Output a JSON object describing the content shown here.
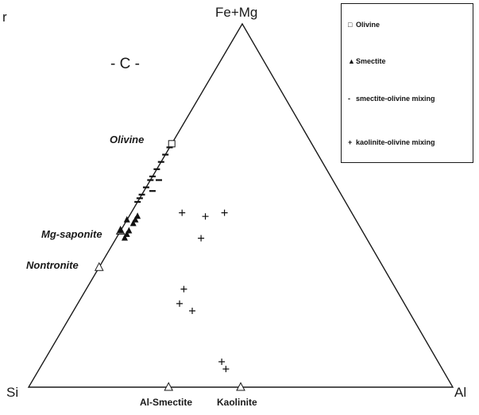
{
  "chart_data": {
    "type": "scatter",
    "plot_kind": "ternary",
    "panel_letter": "r",
    "panel_label": "- C -",
    "vertices": {
      "top": "Fe+Mg",
      "left": "Si",
      "right": "Al"
    },
    "annotations": {
      "olivine": "Olivine",
      "mg_saponite": "Mg-saponite",
      "nontronite": "Nontronite",
      "al_smectite": "Al-Smectite",
      "kaolinite": "Kaolinite"
    },
    "series": [
      {
        "name": "Olivine",
        "symbol": "□",
        "points": [
          {
            "si": 0.33,
            "al": 0.0,
            "femg": 0.67
          }
        ]
      },
      {
        "name": "Smectite",
        "symbol": "▲",
        "points": [
          {
            "si": 0.57,
            "al": 0.0,
            "femg": 0.43
          },
          {
            "si": 0.54,
            "al": 0.0,
            "femg": 0.46
          },
          {
            "si": 0.52,
            "al": 0.02,
            "femg": 0.46
          },
          {
            "si": 0.51,
            "al": 0.02,
            "femg": 0.47
          },
          {
            "si": 0.55,
            "al": 0.02,
            "femg": 0.43
          },
          {
            "si": 0.57,
            "al": 0.02,
            "femg": 0.41
          },
          {
            "si": 0.56,
            "al": 0.02,
            "femg": 0.42
          },
          {
            "si": 0.53,
            "al": 0.02,
            "femg": 0.45
          }
        ]
      },
      {
        "name": "smectite-olivine mixing",
        "symbol": "-",
        "points": [
          {
            "si": 0.34,
            "al": 0.0,
            "femg": 0.66
          },
          {
            "si": 0.36,
            "al": 0.0,
            "femg": 0.64
          },
          {
            "si": 0.38,
            "al": 0.0,
            "femg": 0.62
          },
          {
            "si": 0.4,
            "al": 0.0,
            "femg": 0.6
          },
          {
            "si": 0.41,
            "al": 0.02,
            "femg": 0.57
          },
          {
            "si": 0.43,
            "al": 0.0,
            "femg": 0.57
          },
          {
            "si": 0.44,
            "al": 0.02,
            "femg": 0.54
          },
          {
            "si": 0.45,
            "al": 0.0,
            "femg": 0.55
          },
          {
            "si": 0.47,
            "al": 0.0,
            "femg": 0.53
          },
          {
            "si": 0.48,
            "al": 0.0,
            "femg": 0.52
          },
          {
            "si": 0.49,
            "al": 0.0,
            "femg": 0.51
          },
          {
            "si": 0.42,
            "al": 0.0,
            "femg": 0.58
          }
        ]
      },
      {
        "name": "kaolinite-olivine mixing",
        "symbol": "+",
        "points": [
          {
            "si": 0.35,
            "al": 0.18,
            "femg": 0.47
          },
          {
            "si": 0.3,
            "al": 0.22,
            "femg": 0.48
          },
          {
            "si": 0.4,
            "al": 0.12,
            "femg": 0.48
          },
          {
            "si": 0.39,
            "al": 0.2,
            "femg": 0.41
          },
          {
            "si": 0.5,
            "al": 0.23,
            "femg": 0.27
          },
          {
            "si": 0.53,
            "al": 0.24,
            "femg": 0.23
          },
          {
            "si": 0.51,
            "al": 0.28,
            "femg": 0.21
          },
          {
            "si": 0.51,
            "al": 0.42,
            "femg": 0.07
          },
          {
            "si": 0.51,
            "al": 0.44,
            "femg": 0.05
          }
        ]
      }
    ],
    "reference_points": [
      {
        "label": "Olivine",
        "si": 0.33,
        "al": 0.0,
        "femg": 0.67
      },
      {
        "label": "Mg-saponite",
        "si": 0.57,
        "al": 0.0,
        "femg": 0.43
      },
      {
        "label": "Nontronite",
        "si": 0.67,
        "al": 0.0,
        "femg": 0.33
      },
      {
        "label": "Al-Smectite",
        "si": 0.67,
        "al": 0.33,
        "femg": 0.0
      },
      {
        "label": "Kaolinite",
        "si": 0.5,
        "al": 0.5,
        "femg": 0.0
      }
    ],
    "legend": {
      "position": "top-right",
      "entries": [
        {
          "symbol": "□",
          "label": "Olivine"
        },
        {
          "symbol": "▲",
          "label": "Smectite"
        },
        {
          "symbol": "-",
          "label": "smectite-olivine mixing"
        },
        {
          "symbol": "+",
          "label": "kaolinite-olivine mixing"
        }
      ]
    }
  }
}
